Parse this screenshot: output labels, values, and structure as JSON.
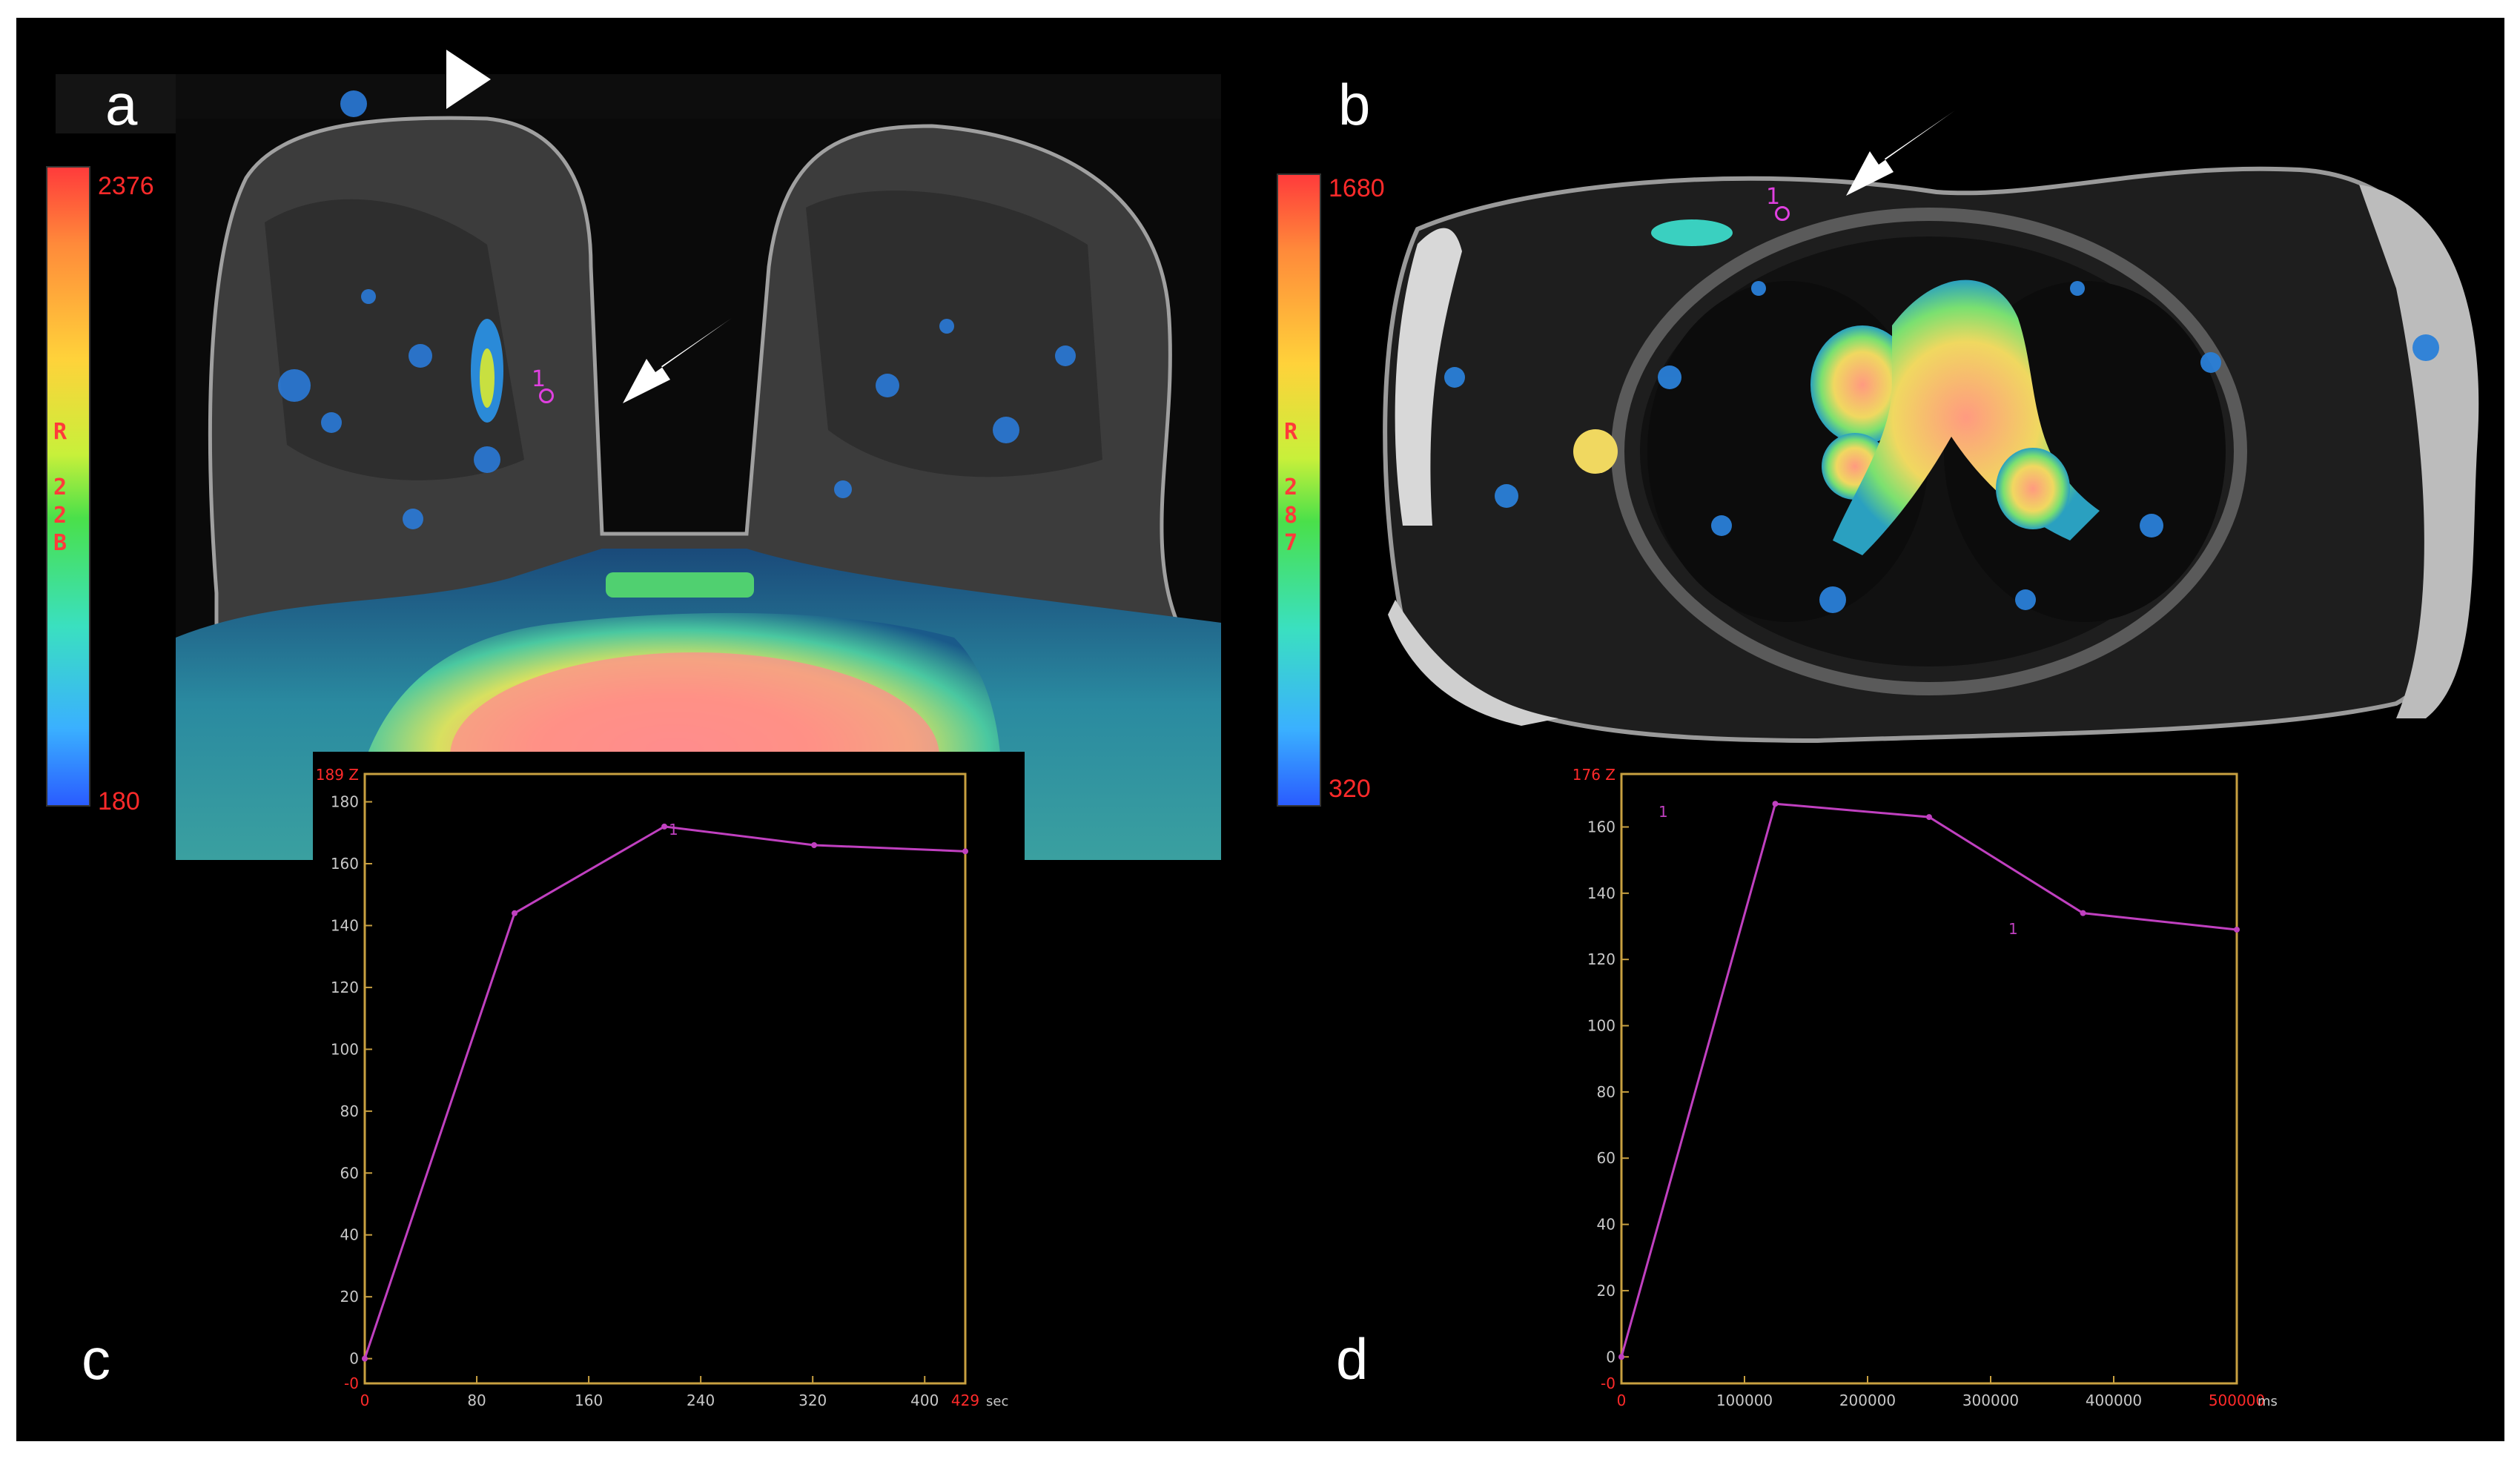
{
  "panels": {
    "a": {
      "letter": "a",
      "colorbar": {
        "max": "2376",
        "min": "180",
        "code": "R\n \n2\n2\nB"
      },
      "arrow": "roi-arrow",
      "arrowhead": "triangle-marker",
      "roi_label": "1"
    },
    "b": {
      "letter": "b",
      "colorbar": {
        "max": "1680",
        "min": "320",
        "code": "R\n \n2\n8\n7"
      },
      "arrow": "roi-arrow",
      "roi_label": "1"
    },
    "c": {
      "letter": "c",
      "y_top_label": "189",
      "y_top_suffix": "Z",
      "x_unit": "sec",
      "x_end_label": "429"
    },
    "d": {
      "letter": "d",
      "y_top_label": "176",
      "y_top_suffix": "Z",
      "x_unit": "ms",
      "x_end_label": "500000"
    }
  },
  "chart_data": [
    {
      "type": "line",
      "panel": "c",
      "x_ticks": [
        "0",
        "80",
        "160",
        "240",
        "320",
        "400"
      ],
      "y_ticks": [
        "-0",
        "0",
        "20",
        "40",
        "60",
        "80",
        "100",
        "120",
        "140",
        "160",
        "180"
      ],
      "xlim": [
        0,
        429
      ],
      "ylim": [
        -8,
        189
      ],
      "series": [
        {
          "color": "#c040c0",
          "point_label": "1",
          "x": [
            0,
            107,
            214,
            321,
            429
          ],
          "y": [
            0,
            144,
            172,
            166,
            164
          ]
        }
      ]
    },
    {
      "type": "line",
      "panel": "d",
      "x_ticks": [
        "0",
        "100000",
        "200000",
        "300000",
        "400000"
      ],
      "y_ticks": [
        "-0",
        "0",
        "20",
        "40",
        "60",
        "80",
        "100",
        "120",
        "140",
        "160"
      ],
      "xlim": [
        0,
        500000
      ],
      "ylim": [
        -8,
        176
      ],
      "series": [
        {
          "color": "#c040c0",
          "point_label": "1",
          "x": [
            0,
            125000,
            250000,
            375000,
            500000
          ],
          "y": [
            0,
            167,
            163,
            134,
            129
          ]
        }
      ]
    }
  ],
  "colors": {
    "axis": "#c8a040",
    "tick_label": "#c8c8c8",
    "accent_label": "#ff2a2a",
    "curve": "#c040c0"
  }
}
